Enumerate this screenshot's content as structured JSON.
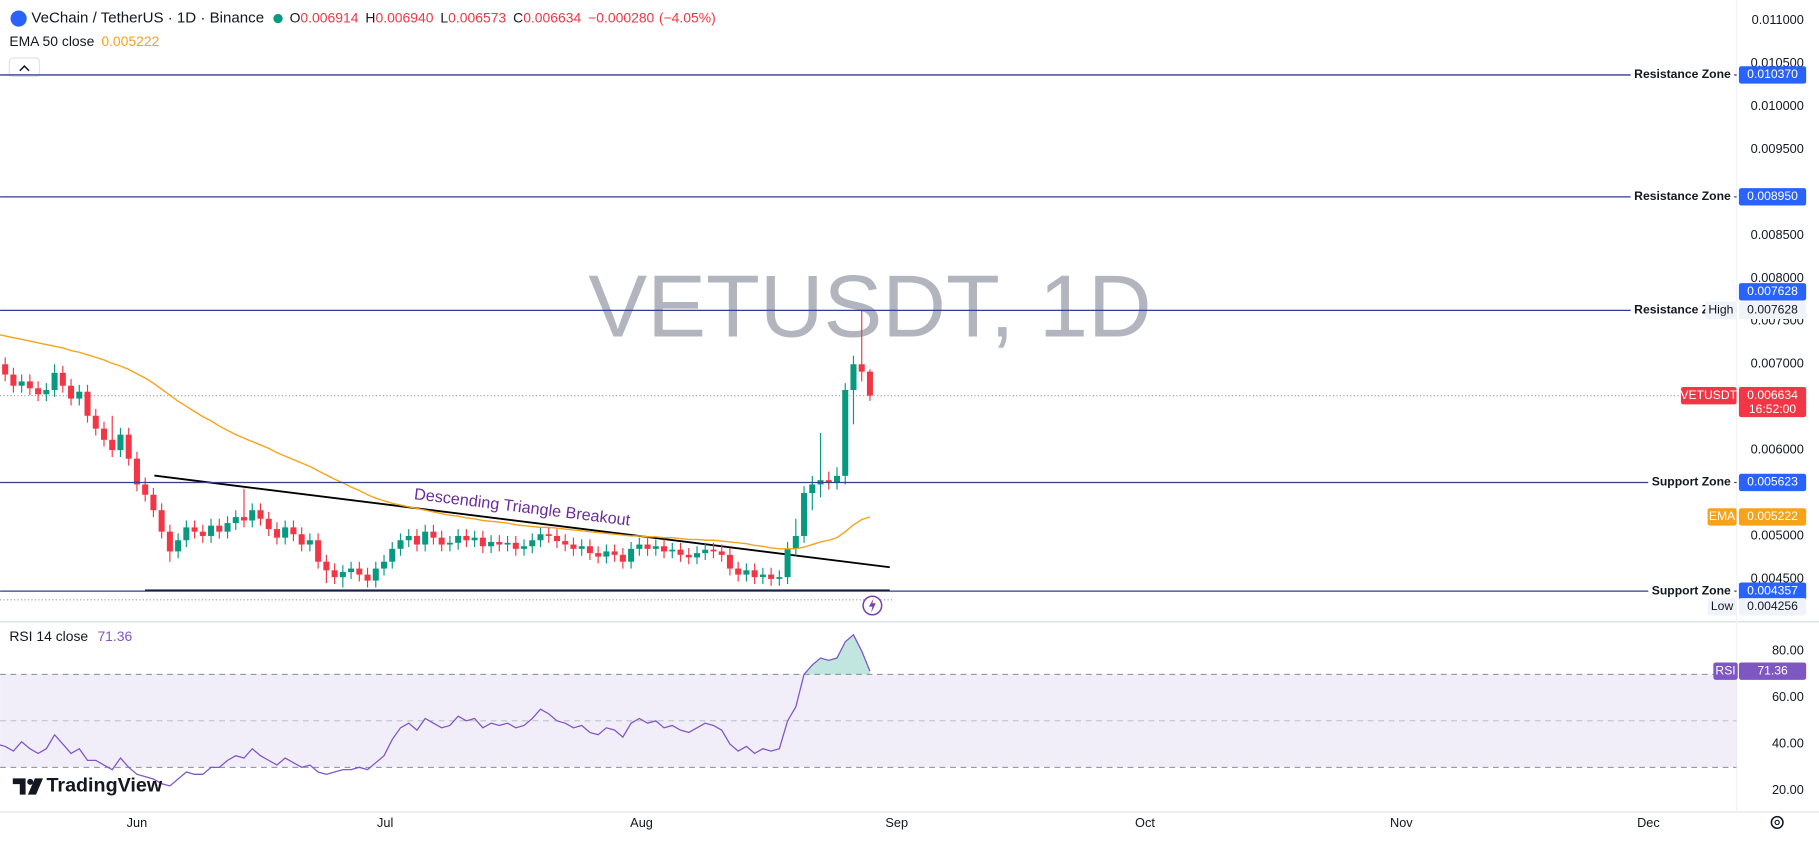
{
  "brand": "TradingView",
  "chart_data": [
    {
      "type": "candlestick",
      "title": "VeChain / TetherUS · 1D · Binance",
      "symbol": "VETUSDT",
      "watermark": "VETUSDT, 1D",
      "header": [
        {
          "key": "O",
          "value": 0.006914,
          "label": "0.006914"
        },
        {
          "key": "H",
          "value": 0.00694,
          "label": "0.006940"
        },
        {
          "key": "L",
          "value": 0.006573,
          "label": "0.006573"
        },
        {
          "key": "C",
          "value": 0.006634,
          "label": "0.006634"
        }
      ],
      "change": {
        "value": -0.00028,
        "label": "−0.000280"
      },
      "change_pct": {
        "value": -4.05,
        "label": "(−4.05%)"
      },
      "x_labels": [
        "Jun",
        "Jul",
        "Aug",
        "Sep",
        "Oct",
        "Nov",
        "Dec"
      ],
      "up_color": "#089981",
      "down_color": "#f23645",
      "open": [
        0.0071,
        0.007,
        0.00688,
        0.00675,
        0.0068,
        0.00672,
        0.00665,
        0.0067,
        0.0069,
        0.00675,
        0.0066,
        0.00668,
        0.0064,
        0.00625,
        0.00612,
        0.006,
        0.00618,
        0.0059,
        0.0056,
        0.00548,
        0.0053,
        0.00505,
        0.00482,
        0.00495,
        0.0051,
        0.00505,
        0.005,
        0.00512,
        0.00505,
        0.00515,
        0.00522,
        0.00518,
        0.0053,
        0.0052,
        0.00508,
        0.00498,
        0.0051,
        0.00502,
        0.0049,
        0.00495,
        0.0047,
        0.0046,
        0.00452,
        0.00458,
        0.00462,
        0.00455,
        0.00448,
        0.00462,
        0.0047,
        0.00485,
        0.00495,
        0.005,
        0.0049,
        0.00505,
        0.00498,
        0.0049,
        0.00492,
        0.005,
        0.00495,
        0.00498,
        0.00488,
        0.00493,
        0.0049,
        0.00492,
        0.00485,
        0.00488,
        0.00495,
        0.00502,
        0.005,
        0.00494,
        0.0049,
        0.00485,
        0.00488,
        0.0048,
        0.00476,
        0.00482,
        0.00478,
        0.0047,
        0.00485,
        0.0049,
        0.00485,
        0.00488,
        0.00482,
        0.00484,
        0.00478,
        0.00475,
        0.0048,
        0.00484,
        0.00482,
        0.00478,
        0.00462,
        0.00455,
        0.0046,
        0.00452,
        0.00455,
        0.0045,
        0.00452,
        0.00485,
        0.005,
        0.0055,
        0.0056,
        0.00565,
        0.00562,
        0.0057,
        0.0067,
        0.007,
        0.006914
      ],
      "high": [
        0.00718,
        0.00708,
        0.00696,
        0.00688,
        0.00688,
        0.0068,
        0.00678,
        0.007,
        0.00698,
        0.00683,
        0.00676,
        0.00676,
        0.00648,
        0.00633,
        0.0064,
        0.00626,
        0.00626,
        0.00598,
        0.00568,
        0.00556,
        0.00538,
        0.00513,
        0.00503,
        0.00518,
        0.00518,
        0.00513,
        0.0052,
        0.0052,
        0.00523,
        0.0053,
        0.00555,
        0.00538,
        0.00538,
        0.00528,
        0.00516,
        0.00518,
        0.00518,
        0.0051,
        0.00503,
        0.00503,
        0.00478,
        0.00468,
        0.00466,
        0.0047,
        0.0047,
        0.00463,
        0.0047,
        0.00478,
        0.00493,
        0.00503,
        0.00508,
        0.00508,
        0.00513,
        0.00513,
        0.00506,
        0.005,
        0.00508,
        0.00508,
        0.00506,
        0.00506,
        0.00501,
        0.00501,
        0.005,
        0.005,
        0.00496,
        0.00503,
        0.0051,
        0.0051,
        0.00508,
        0.00502,
        0.00498,
        0.00496,
        0.00496,
        0.00488,
        0.0049,
        0.0049,
        0.00486,
        0.00493,
        0.00498,
        0.00498,
        0.00496,
        0.00496,
        0.00492,
        0.00492,
        0.00486,
        0.00488,
        0.00492,
        0.00492,
        0.0049,
        0.00486,
        0.0047,
        0.00468,
        0.00468,
        0.00463,
        0.00463,
        0.0046,
        0.00493,
        0.0052,
        0.00558,
        0.0057,
        0.0062,
        0.00575,
        0.0058,
        0.00678,
        0.0071,
        0.007628,
        0.00694
      ],
      "low": [
        0.00692,
        0.0068,
        0.00667,
        0.00667,
        0.00664,
        0.00657,
        0.00657,
        0.00662,
        0.00667,
        0.00652,
        0.00652,
        0.00632,
        0.00617,
        0.00604,
        0.00592,
        0.00592,
        0.00582,
        0.00552,
        0.0054,
        0.00522,
        0.00497,
        0.0047,
        0.00474,
        0.00487,
        0.00497,
        0.00492,
        0.00492,
        0.00497,
        0.00497,
        0.00507,
        0.0051,
        0.0051,
        0.00512,
        0.005,
        0.0049,
        0.0049,
        0.00494,
        0.00482,
        0.00482,
        0.00462,
        0.00445,
        0.00444,
        0.0044,
        0.0045,
        0.00447,
        0.0044,
        0.0044,
        0.00454,
        0.00462,
        0.00477,
        0.00487,
        0.00482,
        0.00482,
        0.0049,
        0.00482,
        0.00482,
        0.00484,
        0.00487,
        0.00487,
        0.0048,
        0.0048,
        0.00482,
        0.00482,
        0.00477,
        0.00477,
        0.0048,
        0.00487,
        0.00492,
        0.00486,
        0.00482,
        0.00477,
        0.00477,
        0.00472,
        0.00468,
        0.00468,
        0.0047,
        0.00462,
        0.00462,
        0.00477,
        0.00477,
        0.00477,
        0.00474,
        0.00474,
        0.0047,
        0.00467,
        0.00467,
        0.00472,
        0.00474,
        0.0047,
        0.00454,
        0.00447,
        0.00447,
        0.00444,
        0.00444,
        0.00442,
        0.00442,
        0.00444,
        0.00477,
        0.00492,
        0.0053,
        0.00545,
        0.00554,
        0.00554,
        0.0056,
        0.0063,
        0.0068,
        0.006573
      ],
      "close": [
        0.007,
        0.00688,
        0.00675,
        0.0068,
        0.00672,
        0.00665,
        0.0067,
        0.0069,
        0.00675,
        0.0066,
        0.00668,
        0.0064,
        0.00625,
        0.00612,
        0.006,
        0.00618,
        0.0059,
        0.0056,
        0.00548,
        0.0053,
        0.00505,
        0.00482,
        0.00495,
        0.0051,
        0.00505,
        0.005,
        0.00512,
        0.00505,
        0.00515,
        0.00522,
        0.00518,
        0.0053,
        0.0052,
        0.00508,
        0.00498,
        0.0051,
        0.00502,
        0.0049,
        0.00495,
        0.0047,
        0.0046,
        0.00452,
        0.00458,
        0.00462,
        0.00455,
        0.00448,
        0.00462,
        0.0047,
        0.00485,
        0.00495,
        0.005,
        0.0049,
        0.00505,
        0.00498,
        0.0049,
        0.00492,
        0.005,
        0.00495,
        0.00498,
        0.00488,
        0.00493,
        0.0049,
        0.00492,
        0.00485,
        0.00488,
        0.00495,
        0.00502,
        0.005,
        0.00494,
        0.0049,
        0.00485,
        0.00488,
        0.0048,
        0.00476,
        0.00482,
        0.00478,
        0.0047,
        0.00485,
        0.0049,
        0.00485,
        0.00488,
        0.00482,
        0.00484,
        0.00478,
        0.00475,
        0.0048,
        0.00484,
        0.00482,
        0.00478,
        0.00462,
        0.00455,
        0.0046,
        0.00452,
        0.00455,
        0.0045,
        0.00452,
        0.00485,
        0.005,
        0.0055,
        0.0056,
        0.00565,
        0.00562,
        0.0057,
        0.0067,
        0.007,
        0.006914,
        0.006634
      ],
      "ema": {
        "name": "EMA 50 close",
        "short_name": "EMA",
        "color": "#f7a21b",
        "values": [
          0.00735,
          0.00733,
          0.00731,
          0.00729,
          0.00727,
          0.00725,
          0.00723,
          0.00721,
          0.00719,
          0.00716,
          0.00714,
          0.00711,
          0.00708,
          0.00705,
          0.00701,
          0.00698,
          0.00694,
          0.00689,
          0.00684,
          0.00678,
          0.00671,
          0.00664,
          0.00657,
          0.00651,
          0.00645,
          0.00639,
          0.00634,
          0.00628,
          0.00623,
          0.00618,
          0.00614,
          0.0061,
          0.00606,
          0.00602,
          0.00597,
          0.00593,
          0.00589,
          0.00585,
          0.00581,
          0.00576,
          0.00571,
          0.00566,
          0.00562,
          0.00557,
          0.00553,
          0.00548,
          0.00544,
          0.00541,
          0.00538,
          0.00536,
          0.00534,
          0.00532,
          0.0053,
          0.00528,
          0.00526,
          0.00524,
          0.00523,
          0.00521,
          0.0052,
          0.00518,
          0.00517,
          0.00516,
          0.00515,
          0.00513,
          0.00512,
          0.00511,
          0.0051,
          0.0051,
          0.00509,
          0.00508,
          0.00507,
          0.00506,
          0.00505,
          0.00504,
          0.00503,
          0.00502,
          0.00501,
          0.005,
          0.005,
          0.00499,
          0.00499,
          0.00498,
          0.00498,
          0.00497,
          0.00496,
          0.00496,
          0.00495,
          0.00495,
          0.00494,
          0.00493,
          0.00492,
          0.00491,
          0.00489,
          0.00488,
          0.00486,
          0.00485,
          0.00485,
          0.00485,
          0.00487,
          0.0049,
          0.00493,
          0.00495,
          0.00498,
          0.00505,
          0.00513,
          0.00519,
          0.005222
        ],
        "last": {
          "value": 0.005222,
          "label": "0.005222"
        }
      },
      "level_color": "#2f3f8f",
      "badge_color": "#2962ff",
      "levels": [
        {
          "name": "Resistance Zone",
          "value": 0.01037,
          "label": "0.010370"
        },
        {
          "name": "Resistance Zone",
          "value": 0.00895,
          "label": "0.008950"
        },
        {
          "name": "Resistance Zone",
          "value": 0.007628,
          "label": "0.007628"
        },
        {
          "name": "Support Zone",
          "value": 0.005623,
          "label": "0.005623"
        },
        {
          "name": "Support Zone",
          "value": 0.004357,
          "label": "0.004357"
        }
      ],
      "high_marker": {
        "name": "High",
        "value": 0.007628,
        "label": "0.007628"
      },
      "low_marker": {
        "name": "Low",
        "value": 0.004256,
        "label": "0.004256"
      },
      "last_price": {
        "value": 0.006634,
        "label": "0.006634",
        "countdown": "16:52:00"
      },
      "annotation": "Descending Triangle Breakout",
      "ylim": [
        0.004014,
        0.011243
      ],
      "yticks": [
        {
          "value": 0.011,
          "label": "0.011000"
        },
        {
          "value": 0.0105,
          "label": "0.010500"
        },
        {
          "value": 0.01,
          "label": "0.010000"
        },
        {
          "value": 0.0095,
          "label": "0.009500"
        },
        {
          "value": 0.0085,
          "label": "0.008500"
        },
        {
          "value": 0.008,
          "label": "0.008000"
        },
        {
          "value": 0.0075,
          "label": "0.007500"
        },
        {
          "value": 0.007,
          "label": "0.007000"
        },
        {
          "value": 0.006,
          "label": "0.006000"
        },
        {
          "value": 0.005,
          "label": "0.005000"
        },
        {
          "value": 0.0045,
          "label": "0.004500"
        }
      ],
      "grid": false
    },
    {
      "type": "line",
      "title": "RSI 14 close",
      "short_name": "RSI",
      "color": "#7e57c2",
      "values": [
        40,
        39,
        37,
        41,
        38,
        36,
        38,
        44,
        40,
        36,
        38,
        33,
        33,
        31,
        29,
        34,
        30,
        27,
        26,
        25,
        23,
        22,
        25,
        28,
        27,
        27,
        30,
        30,
        33,
        35,
        34,
        38,
        35,
        33,
        31,
        34,
        32,
        30,
        31,
        28,
        27,
        28,
        29,
        29,
        30,
        29,
        32,
        35,
        42,
        47,
        49,
        46,
        51,
        49,
        47,
        48,
        52,
        50,
        51,
        47,
        49,
        48,
        49,
        47,
        48,
        51,
        55,
        53,
        50,
        49,
        47,
        48,
        45,
        44,
        47,
        46,
        43,
        49,
        51,
        49,
        50,
        47,
        48,
        46,
        45,
        47,
        49,
        48,
        46,
        40,
        37,
        39,
        36,
        38,
        37,
        38,
        50,
        56,
        70,
        74,
        77,
        76,
        77,
        84,
        87,
        80,
        71.36
      ],
      "last": {
        "value": 71.36,
        "label": "71.36"
      },
      "bands": [
        30,
        70
      ],
      "midline": 50,
      "ylim": [
        10.8,
        91.6
      ],
      "yticks": [
        {
          "value": 20,
          "label": "20.00"
        },
        {
          "value": 40,
          "label": "40.00"
        },
        {
          "value": 60,
          "label": "60.00"
        },
        {
          "value": 80,
          "label": "80.00"
        }
      ]
    }
  ]
}
